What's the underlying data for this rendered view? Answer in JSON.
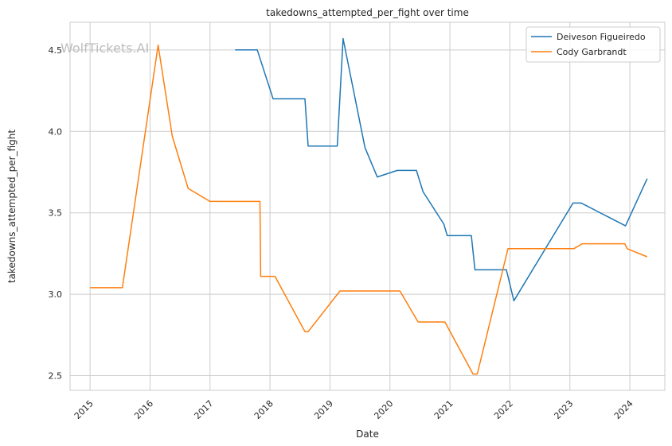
{
  "chart_data": {
    "type": "line",
    "title": "takedowns_attempted_per_fight over time",
    "xlabel": "Date",
    "ylabel": "takedowns_attempted_per_fight",
    "watermark": "WolfTickets.AI",
    "x_ticks": [
      "2015",
      "2016",
      "2017",
      "2018",
      "2019",
      "2020",
      "2021",
      "2022",
      "2023",
      "2024"
    ],
    "y_ticks": [
      "2.5",
      "3.0",
      "3.5",
      "4.0",
      "4.5"
    ],
    "xlim": [
      "2014-09-01",
      "2024-08-01"
    ],
    "ylim": [
      2.41,
      4.67
    ],
    "grid": true,
    "legend_position": "top-right",
    "series": [
      {
        "name": "Deiveson Figueiredo",
        "color": "#1f77b4",
        "points": [
          [
            "2017-06-01",
            4.5
          ],
          [
            "2017-10-15",
            4.5
          ],
          [
            "2018-01-20",
            4.2
          ],
          [
            "2018-08-01",
            4.2
          ],
          [
            "2018-08-20",
            3.91
          ],
          [
            "2019-02-15",
            3.91
          ],
          [
            "2019-03-20",
            4.57
          ],
          [
            "2019-08-01",
            3.9
          ],
          [
            "2019-10-15",
            3.72
          ],
          [
            "2020-02-15",
            3.76
          ],
          [
            "2020-06-10",
            3.76
          ],
          [
            "2020-07-20",
            3.63
          ],
          [
            "2020-11-25",
            3.43
          ],
          [
            "2020-12-15",
            3.36
          ],
          [
            "2021-05-10",
            3.36
          ],
          [
            "2021-06-01",
            3.15
          ],
          [
            "2021-12-10",
            3.15
          ],
          [
            "2022-01-25",
            2.96
          ],
          [
            "2023-01-20",
            3.56
          ],
          [
            "2023-03-10",
            3.56
          ],
          [
            "2023-12-05",
            3.42
          ],
          [
            "2024-04-15",
            3.71
          ]
        ]
      },
      {
        "name": "Cody Garbrandt",
        "color": "#ff7f0e",
        "points": [
          [
            "2015-01-01",
            3.04
          ],
          [
            "2015-07-15",
            3.04
          ],
          [
            "2016-02-20",
            4.53
          ],
          [
            "2016-05-15",
            3.97
          ],
          [
            "2016-08-20",
            3.65
          ],
          [
            "2017-01-01",
            3.57
          ],
          [
            "2017-11-01",
            3.57
          ],
          [
            "2017-11-05",
            3.11
          ],
          [
            "2018-02-01",
            3.11
          ],
          [
            "2018-08-01",
            2.77
          ],
          [
            "2018-08-20",
            2.77
          ],
          [
            "2019-03-01",
            3.02
          ],
          [
            "2020-03-01",
            3.02
          ],
          [
            "2020-06-20",
            2.83
          ],
          [
            "2020-12-01",
            2.83
          ],
          [
            "2021-05-20",
            2.51
          ],
          [
            "2021-06-15",
            2.51
          ],
          [
            "2021-12-20",
            3.28
          ],
          [
            "2023-01-25",
            3.28
          ],
          [
            "2023-03-15",
            3.31
          ],
          [
            "2023-12-01",
            3.31
          ],
          [
            "2023-12-15",
            3.28
          ],
          [
            "2024-04-15",
            3.23
          ]
        ]
      }
    ]
  }
}
